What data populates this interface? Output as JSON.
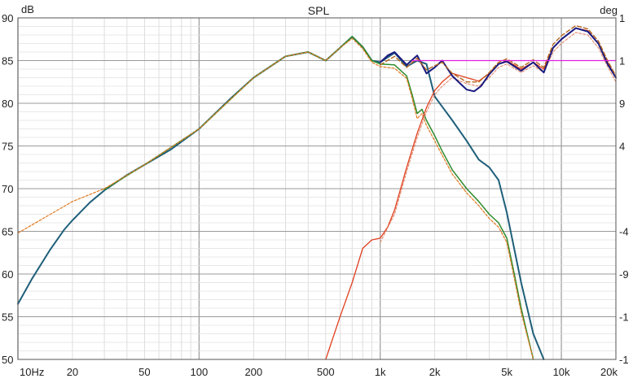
{
  "chart_data": {
    "type": "line",
    "title": "SPL",
    "y_unit": "dB",
    "y2_unit": "deg",
    "x_scale": "log",
    "xlim": [
      10,
      20000
    ],
    "ylim": [
      50,
      90
    ],
    "x_tick_labels": [
      "10Hz",
      "20",
      "50",
      "100",
      "200",
      "500",
      "1k",
      "2k",
      "5k",
      "10k",
      "20k"
    ],
    "x_tick_values": [
      10,
      20,
      50,
      100,
      200,
      500,
      1000,
      2000,
      5000,
      10000,
      20000
    ],
    "y_ticks": [
      50,
      55,
      60,
      65,
      70,
      75,
      80,
      85,
      90
    ],
    "y2_tick_labels": [
      "1",
      "1",
      "9",
      "4",
      "",
      "-4",
      "-9",
      "-1",
      "-1"
    ],
    "grid": true,
    "series": [
      {
        "color": "#1f5f7a",
        "width": 2,
        "points": [
          [
            10,
            56.5
          ],
          [
            12,
            59.5
          ],
          [
            15,
            62.8
          ],
          [
            18,
            65.2
          ],
          [
            20,
            66.3
          ],
          [
            25,
            68.4
          ],
          [
            30,
            69.8
          ],
          [
            40,
            71.6
          ],
          [
            50,
            72.8
          ],
          [
            70,
            74.6
          ],
          [
            100,
            77.0
          ],
          [
            150,
            80.6
          ],
          [
            200,
            83.0
          ],
          [
            300,
            85.5
          ],
          [
            400,
            86.0
          ],
          [
            500,
            85.0
          ],
          [
            600,
            86.5
          ],
          [
            700,
            87.8
          ],
          [
            800,
            86.6
          ],
          [
            900,
            85.0
          ],
          [
            1000,
            84.8
          ],
          [
            1200,
            85.9
          ],
          [
            1400,
            84.3
          ],
          [
            1600,
            85.0
          ],
          [
            1800,
            84.6
          ],
          [
            2000,
            80.8
          ],
          [
            2200,
            79.6
          ],
          [
            2500,
            78.0
          ],
          [
            3000,
            75.6
          ],
          [
            3500,
            73.4
          ],
          [
            4000,
            72.5
          ],
          [
            4500,
            71.0
          ],
          [
            5000,
            67.2
          ],
          [
            6000,
            59.0
          ],
          [
            7000,
            53.0
          ],
          [
            8000,
            50.0
          ]
        ]
      },
      {
        "color": "#2e8b2e",
        "width": 1.5,
        "points": [
          [
            30,
            69.9
          ],
          [
            50,
            72.8
          ],
          [
            100,
            77.0
          ],
          [
            200,
            83.0
          ],
          [
            300,
            85.5
          ],
          [
            400,
            86.0
          ],
          [
            500,
            85.0
          ],
          [
            600,
            86.5
          ],
          [
            700,
            87.8
          ],
          [
            800,
            86.6
          ],
          [
            900,
            85.0
          ],
          [
            1000,
            84.6
          ],
          [
            1200,
            84.5
          ],
          [
            1400,
            83.2
          ],
          [
            1500,
            81.0
          ],
          [
            1600,
            78.8
          ],
          [
            1700,
            79.3
          ],
          [
            1800,
            78.0
          ],
          [
            2000,
            76.2
          ],
          [
            2200,
            74.4
          ],
          [
            2500,
            72.2
          ],
          [
            3000,
            70.0
          ],
          [
            3500,
            68.5
          ],
          [
            4000,
            67.0
          ],
          [
            4500,
            66.0
          ],
          [
            5000,
            64.2
          ],
          [
            5500,
            60.0
          ],
          [
            6000,
            56.0
          ],
          [
            7000,
            50.0
          ]
        ]
      },
      {
        "color": "#e07a20",
        "width": 1.2,
        "dash": "3,2",
        "points": [
          [
            10,
            64.8
          ],
          [
            20,
            68.5
          ],
          [
            30,
            70.0
          ],
          [
            50,
            72.8
          ],
          [
            100,
            77.0
          ],
          [
            200,
            83.0
          ],
          [
            300,
            85.5
          ],
          [
            400,
            86.0
          ],
          [
            500,
            85.0
          ],
          [
            600,
            86.5
          ],
          [
            700,
            87.6
          ],
          [
            800,
            86.4
          ],
          [
            900,
            84.8
          ],
          [
            1000,
            84.3
          ],
          [
            1200,
            84.1
          ],
          [
            1400,
            82.9
          ],
          [
            1500,
            80.6
          ],
          [
            1600,
            78.2
          ],
          [
            1700,
            78.8
          ],
          [
            1800,
            77.4
          ],
          [
            2000,
            75.6
          ],
          [
            2200,
            73.9
          ],
          [
            2500,
            71.7
          ],
          [
            3000,
            69.5
          ],
          [
            3500,
            68.0
          ],
          [
            4000,
            66.5
          ],
          [
            4500,
            65.5
          ],
          [
            5000,
            63.7
          ],
          [
            5500,
            59.5
          ],
          [
            6000,
            55.5
          ],
          [
            7000,
            50.0
          ]
        ]
      },
      {
        "color": "#e04020",
        "width": 1.3,
        "points": [
          [
            500,
            50.0
          ],
          [
            600,
            55.0
          ],
          [
            700,
            59.0
          ],
          [
            800,
            63.0
          ],
          [
            900,
            64.0
          ],
          [
            1000,
            64.2
          ],
          [
            1100,
            65.5
          ],
          [
            1200,
            67.5
          ],
          [
            1400,
            72.5
          ],
          [
            1600,
            76.5
          ],
          [
            1800,
            79.5
          ],
          [
            2000,
            81.5
          ],
          [
            2200,
            82.5
          ],
          [
            2500,
            83.5
          ],
          [
            3000,
            83.0
          ],
          [
            3500,
            82.6
          ],
          [
            4000,
            83.5
          ],
          [
            4500,
            84.6
          ],
          [
            5000,
            85.0
          ],
          [
            6000,
            84.0
          ],
          [
            7000,
            84.8
          ],
          [
            8000,
            84.0
          ],
          [
            9000,
            86.5
          ],
          [
            10000,
            87.5
          ],
          [
            12000,
            88.8
          ],
          [
            14000,
            88.5
          ],
          [
            16000,
            87.0
          ],
          [
            18000,
            84.8
          ],
          [
            20000,
            83.0
          ]
        ]
      },
      {
        "color": "#e08060",
        "width": 1.0,
        "dash": "3,2",
        "points": [
          [
            1000,
            63.7
          ],
          [
            1200,
            67.0
          ],
          [
            1400,
            72.0
          ],
          [
            1600,
            76.0
          ],
          [
            1800,
            79.0
          ],
          [
            2000,
            81.0
          ],
          [
            2200,
            82.0
          ],
          [
            2500,
            83.0
          ],
          [
            3000,
            82.3
          ],
          [
            3500,
            82.0
          ],
          [
            4000,
            83.0
          ],
          [
            4500,
            84.2
          ],
          [
            5000,
            84.6
          ],
          [
            6000,
            83.6
          ],
          [
            7000,
            84.4
          ],
          [
            8000,
            83.6
          ],
          [
            9000,
            86.0
          ],
          [
            10000,
            87.0
          ],
          [
            12000,
            88.3
          ],
          [
            14000,
            88.0
          ],
          [
            16000,
            86.5
          ],
          [
            18000,
            84.3
          ],
          [
            20000,
            82.5
          ]
        ]
      },
      {
        "color": "#1a1a80",
        "width": 2,
        "points": [
          [
            1000,
            84.8
          ],
          [
            1100,
            85.6
          ],
          [
            1200,
            86.0
          ],
          [
            1400,
            84.5
          ],
          [
            1600,
            85.6
          ],
          [
            1800,
            83.5
          ],
          [
            2000,
            84.2
          ],
          [
            2200,
            85.0
          ],
          [
            2500,
            83.2
          ],
          [
            2800,
            82.2
          ],
          [
            3000,
            81.6
          ],
          [
            3300,
            81.4
          ],
          [
            3600,
            82.0
          ],
          [
            4000,
            83.4
          ],
          [
            4500,
            84.6
          ],
          [
            5000,
            84.9
          ],
          [
            6000,
            83.8
          ],
          [
            7000,
            84.8
          ],
          [
            8000,
            83.6
          ],
          [
            9000,
            86.5
          ],
          [
            10000,
            87.5
          ],
          [
            12000,
            88.8
          ],
          [
            14000,
            88.4
          ],
          [
            16000,
            87.0
          ],
          [
            18000,
            84.6
          ],
          [
            20000,
            83.0
          ]
        ]
      },
      {
        "color": "#b5651d",
        "width": 1.4,
        "dash": "5,3",
        "points": [
          [
            1000,
            84.5
          ],
          [
            1200,
            85.5
          ],
          [
            1400,
            84.2
          ],
          [
            1600,
            85.3
          ],
          [
            1800,
            83.9
          ],
          [
            2000,
            84.4
          ],
          [
            2200,
            84.8
          ],
          [
            2500,
            83.5
          ],
          [
            3000,
            82.5
          ],
          [
            3500,
            82.5
          ],
          [
            4000,
            83.6
          ],
          [
            4500,
            84.8
          ],
          [
            5000,
            85.2
          ],
          [
            6000,
            84.2
          ],
          [
            7000,
            85.1
          ],
          [
            8000,
            84.2
          ],
          [
            9000,
            86.9
          ],
          [
            10000,
            87.9
          ],
          [
            12000,
            89.1
          ],
          [
            14000,
            88.7
          ],
          [
            16000,
            87.3
          ],
          [
            18000,
            85.0
          ],
          [
            20000,
            83.2
          ]
        ]
      },
      {
        "color": "#e020e0",
        "width": 1.2,
        "points": [
          [
            1500,
            85.0
          ],
          [
            20000,
            85.0
          ]
        ]
      }
    ]
  }
}
